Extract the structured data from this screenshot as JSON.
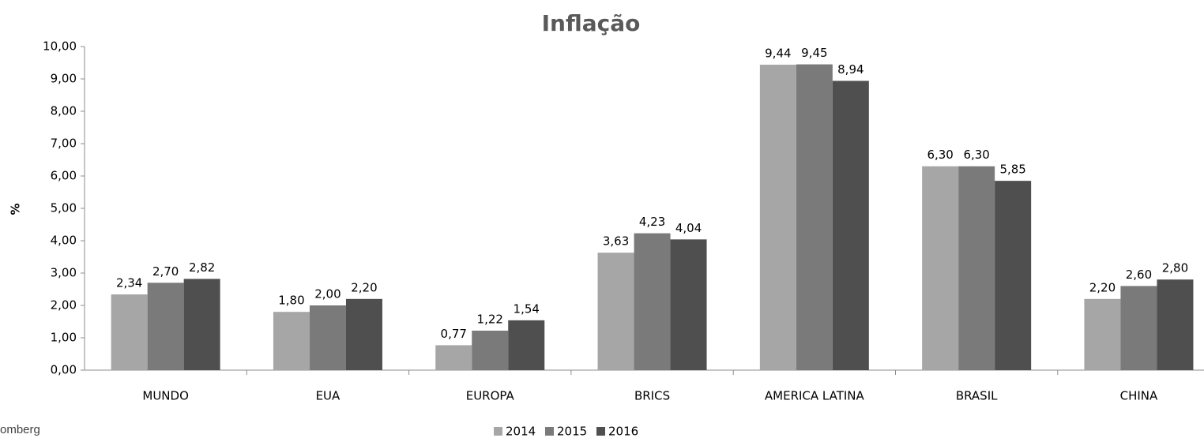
{
  "chart_data": {
    "type": "bar",
    "title": "Inflação",
    "y_label": "%",
    "source": "omberg",
    "categories": [
      "MUNDO",
      "EUA",
      "EUROPA",
      "BRICS",
      "AMERICA LATINA",
      "BRASIL",
      "CHINA"
    ],
    "series": [
      {
        "name": "2014",
        "color": "#a6a6a6",
        "values": [
          2.34,
          1.8,
          0.77,
          3.63,
          9.44,
          6.3,
          2.2
        ],
        "value_labels": [
          "2,34",
          "1,80",
          "0,77",
          "3,63",
          "9,44",
          "6,30",
          "2,20"
        ]
      },
      {
        "name": "2015",
        "color": "#7a7a7a",
        "values": [
          2.7,
          2.0,
          1.22,
          4.23,
          9.45,
          6.3,
          2.6
        ],
        "value_labels": [
          "2,70",
          "2,00",
          "1,22",
          "4,23",
          "9,45",
          "6,30",
          "2,60"
        ]
      },
      {
        "name": "2016",
        "color": "#4f4f4f",
        "values": [
          2.82,
          2.2,
          1.54,
          4.04,
          8.94,
          5.85,
          2.8
        ],
        "value_labels": [
          "2,82",
          "2,20",
          "1,54",
          "4,04",
          "8,94",
          "5,85",
          "2,80"
        ]
      }
    ],
    "ylim": [
      0,
      10
    ],
    "yticks": [
      {
        "value": 0,
        "label": "0,00"
      },
      {
        "value": 1,
        "label": "1,00"
      },
      {
        "value": 2,
        "label": "2,00"
      },
      {
        "value": 3,
        "label": "3,00"
      },
      {
        "value": 4,
        "label": "4,00"
      },
      {
        "value": 5,
        "label": "5,00"
      },
      {
        "value": 6,
        "label": "6,00"
      },
      {
        "value": 7,
        "label": "7,00"
      },
      {
        "value": 8,
        "label": "8,00"
      },
      {
        "value": 9,
        "label": "9,00"
      },
      {
        "value": 10,
        "label": "10,00"
      }
    ],
    "grid": false,
    "legend": "bottom"
  }
}
